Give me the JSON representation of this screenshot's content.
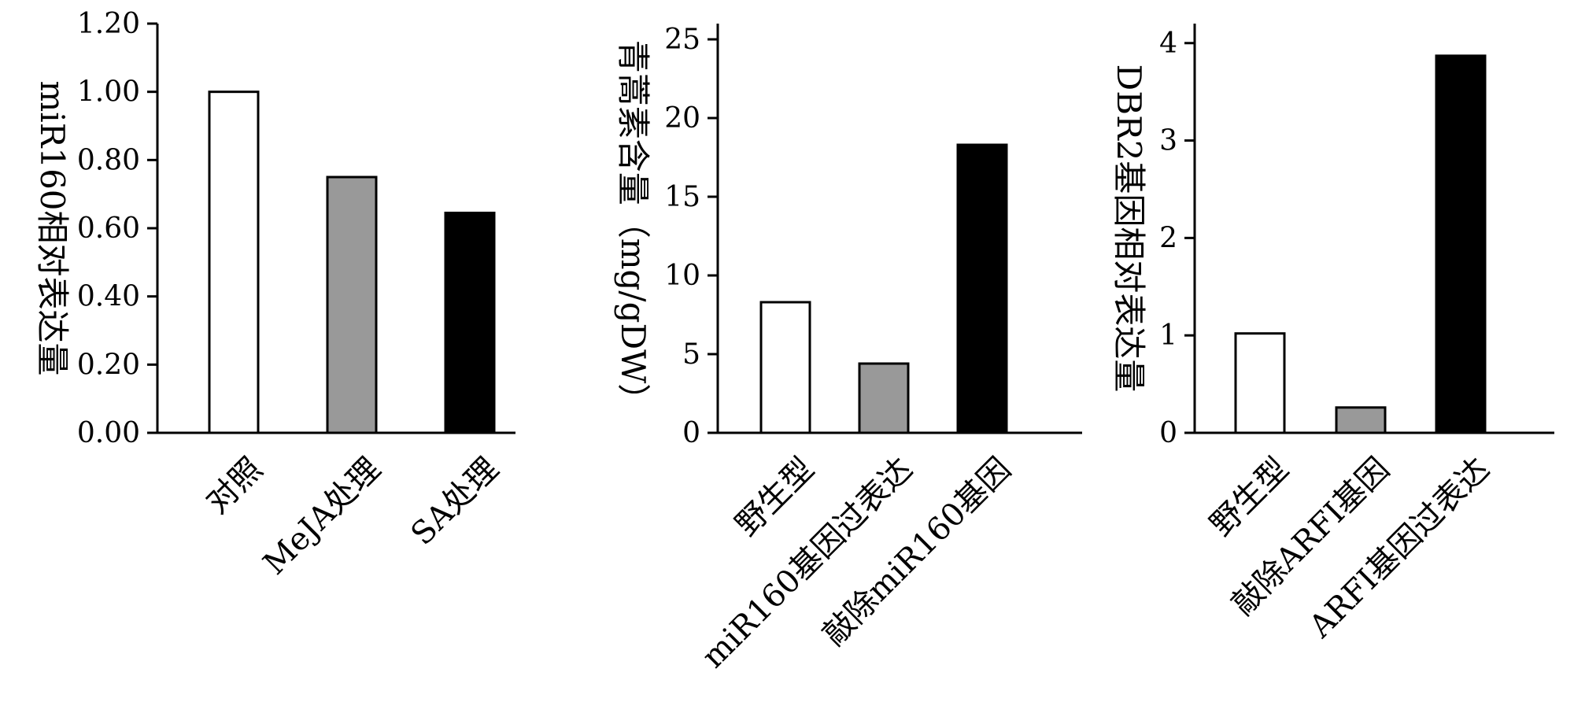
{
  "chart_data": [
    {
      "type": "bar",
      "ylabel": "miR160相对表达量",
      "categories": [
        "对照",
        "MeJA处理",
        "SA处理"
      ],
      "values": [
        1.0,
        0.75,
        0.645
      ],
      "ylim": [
        0,
        1.2
      ],
      "yticks": [
        0,
        0.2,
        0.4,
        0.6,
        0.8,
        1.0,
        1.2
      ],
      "ytick_labels": [
        "0.00",
        "0.20",
        "0.40",
        "0.60",
        "0.80",
        "1.00",
        "1.20"
      ],
      "bar_colors": [
        "#ffffff",
        "#999999",
        "#000000"
      ],
      "grid": false
    },
    {
      "type": "bar",
      "ylabel": "青蒿素含量（mg/gDW）",
      "categories": [
        "野生型",
        "miR160基因过表达",
        "敲除miR160基因"
      ],
      "values": [
        8.3,
        4.4,
        18.3
      ],
      "ylim": [
        0,
        26
      ],
      "yticks": [
        0,
        5,
        10,
        15,
        20,
        25
      ],
      "ytick_labels": [
        "0",
        "5",
        "10",
        "15",
        "20",
        "25"
      ],
      "bar_colors": [
        "#ffffff",
        "#999999",
        "#000000"
      ],
      "grid": false
    },
    {
      "type": "bar",
      "ylabel": "DBR2基因相对表达量",
      "categories": [
        "野生型",
        "敲除ARFI基因",
        "ARFI基因过表达"
      ],
      "values": [
        1.02,
        0.26,
        3.87
      ],
      "ylim": [
        0,
        4.2
      ],
      "yticks": [
        0,
        1,
        2,
        3,
        4
      ],
      "ytick_labels": [
        "0",
        "1",
        "2",
        "3",
        "4"
      ],
      "bar_colors": [
        "#ffffff",
        "#999999",
        "#000000"
      ],
      "grid": false
    }
  ]
}
